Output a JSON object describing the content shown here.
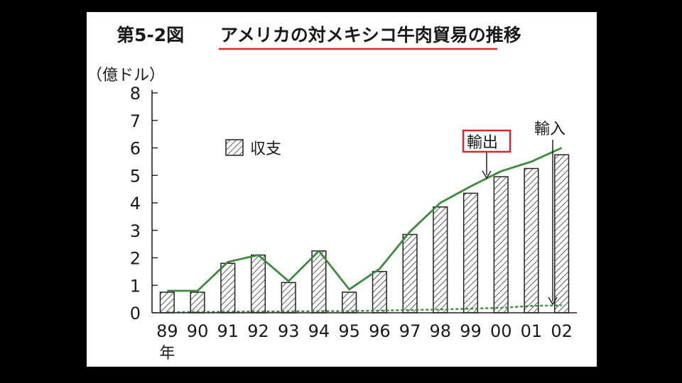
{
  "chart_data": {
    "type": "bar",
    "title_prefix": "第5-2図",
    "title": "アメリカの対メキシコ牛肉貿易の推移",
    "ylabel": "（億ドル）",
    "xlabel": "年",
    "ylim": [
      0,
      8
    ],
    "yticks": [
      0,
      1,
      2,
      3,
      4,
      5,
      6,
      7,
      8
    ],
    "categories": [
      "89",
      "90",
      "91",
      "92",
      "93",
      "94",
      "95",
      "96",
      "97",
      "98",
      "99",
      "00",
      "01",
      "02"
    ],
    "series": [
      {
        "name": "収支",
        "type": "bar",
        "values": [
          0.75,
          0.75,
          1.8,
          2.1,
          1.1,
          2.25,
          0.75,
          1.5,
          2.85,
          3.85,
          4.35,
          4.95,
          5.25,
          5.75
        ]
      },
      {
        "name": "輸出",
        "type": "line",
        "values": [
          0.8,
          0.8,
          1.85,
          2.1,
          1.15,
          2.25,
          0.85,
          1.6,
          2.95,
          4.0,
          4.6,
          5.15,
          5.5,
          6.0
        ]
      },
      {
        "name": "輸入",
        "type": "line",
        "values": [
          0.02,
          0.03,
          0.04,
          0.05,
          0.05,
          0.06,
          0.06,
          0.08,
          0.1,
          0.12,
          0.15,
          0.18,
          0.25,
          0.27
        ]
      }
    ],
    "grid": false,
    "legend_placement": "top-left",
    "colors": {
      "line": "#3c8a3c",
      "bar_stroke": "#222222",
      "highlight_box": "#d42a2a",
      "title_underline": "#d42a2a"
    }
  }
}
